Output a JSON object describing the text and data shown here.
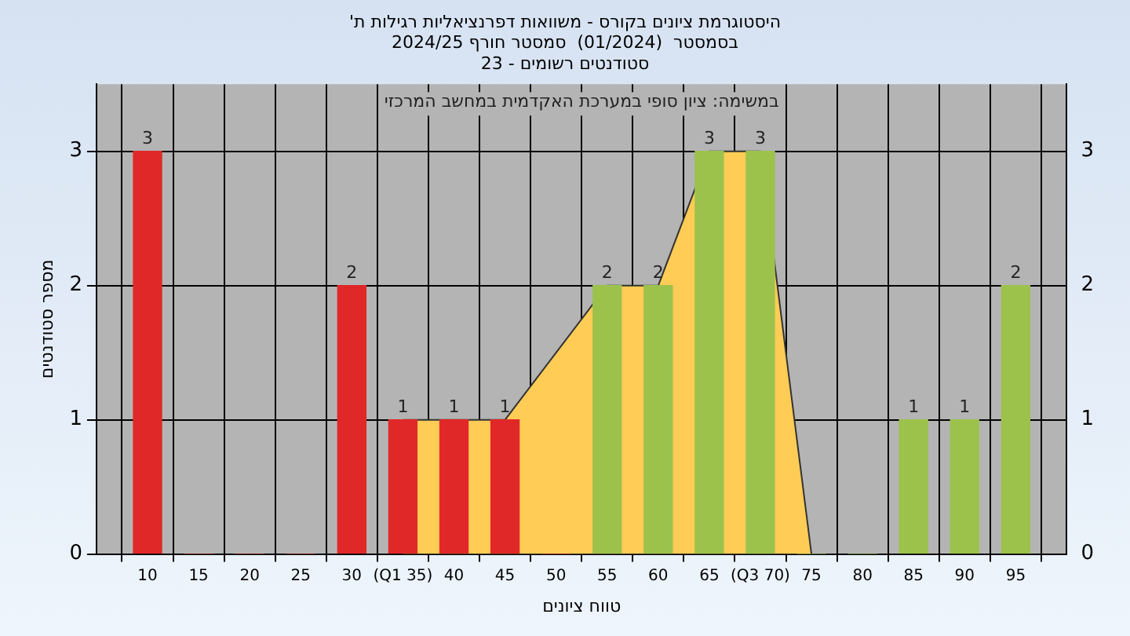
{
  "chart_data": {
    "type": "bar",
    "title": "'היסטוגרמת ציונים בקורס - משוואות דפרנציאליות רגילות ת\nבסמסטר  (01/2024)  סמסטר חורף 2024/25\nסטודנטים רשומים - 23",
    "xlabel": "טווח ציונים",
    "ylabel": "מספר סטודנטים",
    "annotations": [
      "במשימה: ציון סופי במערכת האקדמית במחשב המרכזי"
    ],
    "x": [
      10,
      15,
      20,
      25,
      30,
      35,
      40,
      45,
      50,
      55,
      60,
      65,
      70,
      75,
      80,
      85,
      90,
      95
    ],
    "series": [
      {
        "type": "area",
        "color": "#ffcc55",
        "x": [
          35,
          40,
          45,
          50,
          55,
          60,
          65,
          70,
          75
        ],
        "values": [
          1,
          1,
          1,
          1.5,
          2,
          2,
          3,
          3,
          0
        ]
      },
      {
        "colors": [
          "#e02828",
          "#e02828",
          "#e02828",
          "#e02828",
          "#e02828",
          "#e02828",
          "#e02828",
          "#e02828",
          "#e02828",
          "#9cc24c",
          "#9cc24c",
          "#9cc24c",
          "#9cc24c",
          "#9cc24c",
          "#9cc24c",
          "#9cc24c",
          "#9cc24c",
          "#9cc24c"
        ],
        "values": [
          3,
          0,
          0,
          0,
          2,
          1,
          1,
          1,
          0,
          2,
          2,
          3,
          3,
          0,
          0,
          1,
          1,
          2
        ],
        "value_labels": [
          "3",
          null,
          null,
          null,
          "2",
          "1",
          "1",
          "1",
          null,
          "2",
          "2",
          "3",
          "3",
          null,
          null,
          "1",
          "1",
          "2"
        ]
      }
    ],
    "xlim": [
      5,
      100
    ],
    "xticks": [
      10,
      15,
      20,
      25,
      30,
      {
        "value": 35,
        "label": "(Q1 35)"
      },
      40,
      45,
      50,
      55,
      60,
      65,
      {
        "value": 70,
        "label": "(Q3 70)"
      },
      75,
      80,
      85,
      90,
      95
    ],
    "ylim": [
      0,
      3.5
    ],
    "yticks": [
      0,
      1,
      2,
      3
    ],
    "y2lim": [
      0,
      3.5
    ],
    "y2ticks": [
      0,
      1,
      2,
      3
    ],
    "grid": true,
    "legend": false
  }
}
